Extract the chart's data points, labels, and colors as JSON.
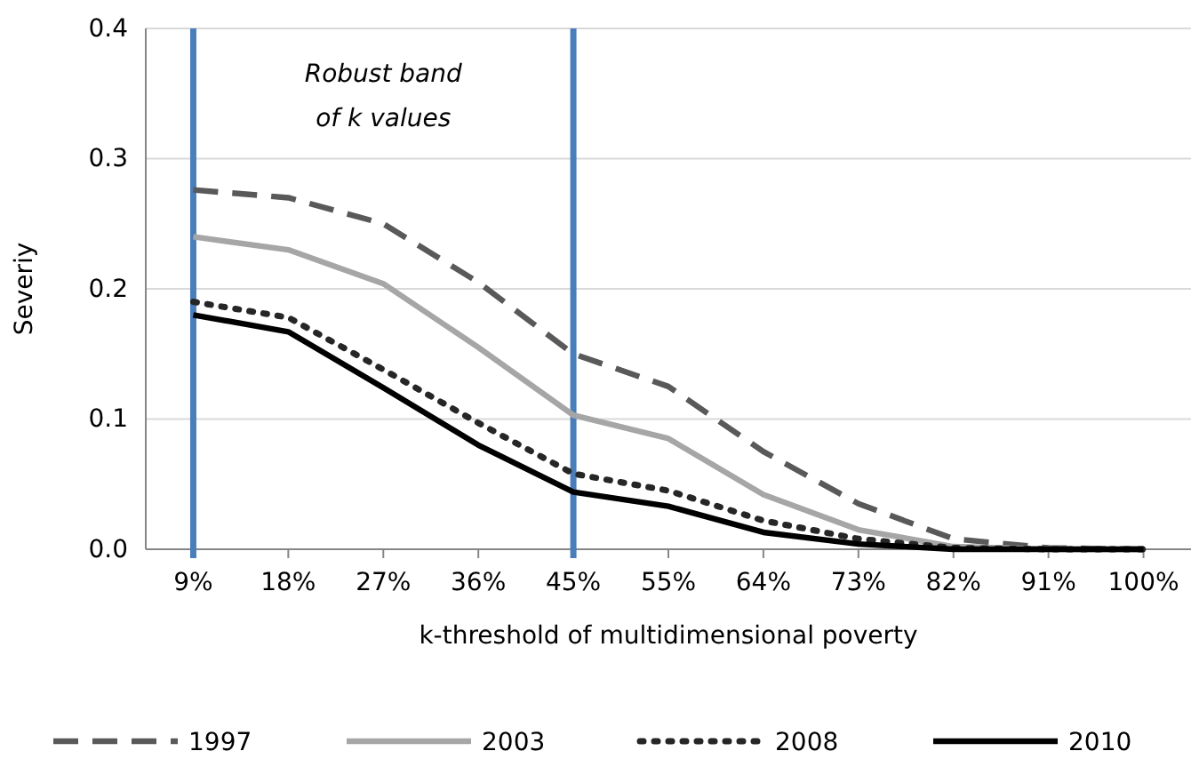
{
  "chart_data": {
    "type": "line",
    "xlabel": "k-threshold of multidimensional poverty",
    "ylabel": "Severiy",
    "categories": [
      "9%",
      "18%",
      "27%",
      "36%",
      "45%",
      "55%",
      "64%",
      "73%",
      "82%",
      "91%",
      "100%"
    ],
    "ylim": [
      0,
      0.4
    ],
    "yticks": [
      {
        "value": 0,
        "label": "0.0"
      },
      {
        "value": 0.1,
        "label": "0.1"
      },
      {
        "value": 0.2,
        "label": "0.2"
      },
      {
        "value": 0.3,
        "label": "0.3"
      },
      {
        "value": 0.4,
        "label": "0.4"
      }
    ],
    "grid": "y",
    "legend": "bottom",
    "marker": "none",
    "series": [
      {
        "name": "1997",
        "color": "#595959",
        "line_style": "dashed",
        "values": [
          0.276,
          0.27,
          0.25,
          0.205,
          0.15,
          0.125,
          0.075,
          0.035,
          0.008,
          0.001,
          0
        ]
      },
      {
        "name": "2003",
        "color": "#a6a6a6",
        "line_style": "solid",
        "values": [
          0.24,
          0.23,
          0.204,
          0.155,
          0.103,
          0.085,
          0.042,
          0.015,
          0.002,
          0,
          0
        ]
      },
      {
        "name": "2008",
        "color": "#262626",
        "line_style": "dotted",
        "values": [
          0.19,
          0.178,
          0.138,
          0.097,
          0.058,
          0.045,
          0.022,
          0.008,
          0.001,
          0,
          0
        ]
      },
      {
        "name": "2010",
        "color": "#000000",
        "line_style": "solid",
        "values": [
          0.18,
          0.167,
          0.124,
          0.08,
          0.044,
          0.033,
          0.013,
          0.004,
          0,
          0,
          0
        ]
      }
    ],
    "ref_lines": [
      {
        "axis": "x",
        "value": "9%",
        "color": "#4a7ebb"
      },
      {
        "axis": "x",
        "value": "45%",
        "color": "#4a7ebb"
      }
    ],
    "annotations": [
      "Robust band\nof k values"
    ]
  }
}
